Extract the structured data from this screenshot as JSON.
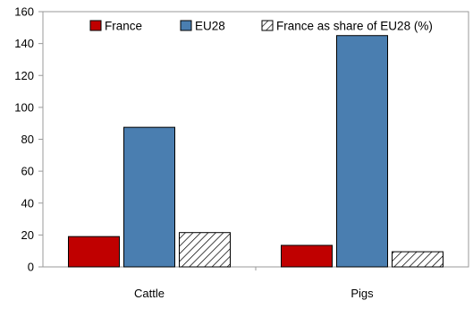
{
  "chart_data": {
    "type": "bar",
    "categories": [
      "Cattle",
      "Pigs"
    ],
    "series": [
      {
        "name": "France",
        "values": [
          19,
          13.5
        ],
        "color": "#c00000",
        "pattern": "solid"
      },
      {
        "name": "EU28",
        "values": [
          87.5,
          145
        ],
        "color": "#4a7eb0",
        "pattern": "solid"
      },
      {
        "name": "France as share of EU28 (%)",
        "values": [
          21.5,
          9.5
        ],
        "color": "#000000",
        "pattern": "hatch"
      }
    ],
    "title": "",
    "xlabel": "",
    "ylabel": "",
    "ylim": [
      0,
      160
    ],
    "yticks": [
      0,
      20,
      40,
      60,
      80,
      100,
      120,
      140,
      160
    ],
    "grid": false,
    "legend": "top"
  }
}
